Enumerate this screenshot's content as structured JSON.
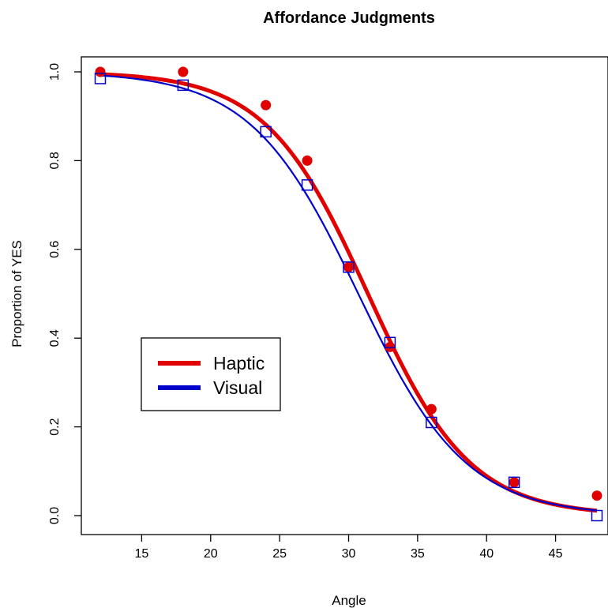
{
  "chart_data": {
    "type": "scatter",
    "title": "Affordance Judgments",
    "xlabel": "Angle",
    "ylabel": "Proportion of YES",
    "xlim": [
      12,
      48
    ],
    "ylim": [
      0,
      1
    ],
    "x_ticks": [
      15,
      20,
      25,
      30,
      35,
      40,
      45
    ],
    "y_ticks": [
      0.0,
      0.2,
      0.4,
      0.6,
      0.8,
      1.0
    ],
    "y_tick_labels": [
      "0.0",
      "0.2",
      "0.4",
      "0.6",
      "0.8",
      "1.0"
    ],
    "grid": false,
    "legend_position": "center-left",
    "series": [
      {
        "name": "Haptic",
        "color": "#e00000",
        "marker": "filled-circle",
        "points": [
          {
            "x": 12,
            "y": 1.0
          },
          {
            "x": 18,
            "y": 1.0
          },
          {
            "x": 24,
            "y": 0.925
          },
          {
            "x": 27,
            "y": 0.8
          },
          {
            "x": 30,
            "y": 0.56
          },
          {
            "x": 33,
            "y": 0.38
          },
          {
            "x": 36,
            "y": 0.24
          },
          {
            "x": 42,
            "y": 0.075
          },
          {
            "x": 48,
            "y": 0.045
          }
        ],
        "fit": {
          "model": "logistic",
          "midpoint": 31.4,
          "scale": 3.7
        }
      },
      {
        "name": "Visual",
        "color": "#0000cc",
        "marker": "open-square",
        "points": [
          {
            "x": 12,
            "y": 0.985
          },
          {
            "x": 18,
            "y": 0.97
          },
          {
            "x": 24,
            "y": 0.865
          },
          {
            "x": 27,
            "y": 0.745
          },
          {
            "x": 30,
            "y": 0.56
          },
          {
            "x": 33,
            "y": 0.39
          },
          {
            "x": 36,
            "y": 0.21
          },
          {
            "x": 42,
            "y": 0.075
          },
          {
            "x": 48,
            "y": 0.0
          }
        ],
        "fit": {
          "model": "logistic",
          "midpoint": 30.7,
          "scale": 3.9
        }
      }
    ]
  }
}
